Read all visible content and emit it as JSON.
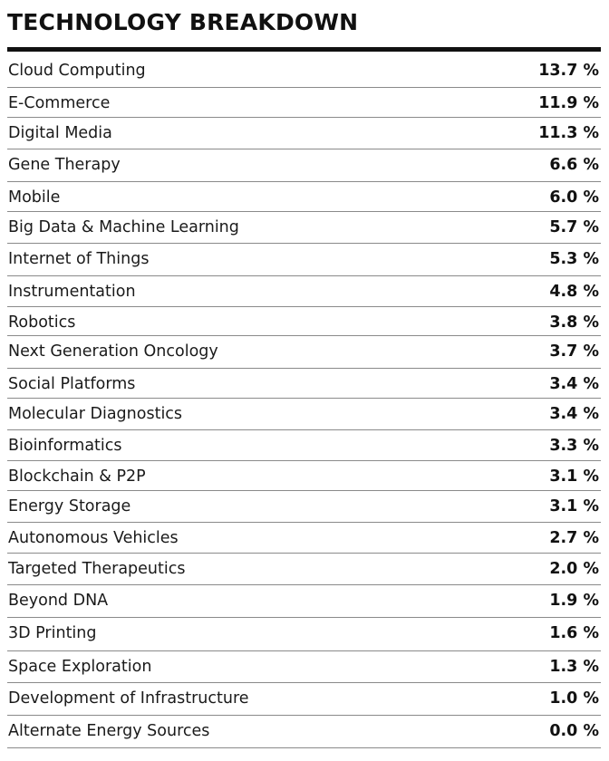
{
  "chart_data": {
    "type": "table",
    "title": "TECHNOLOGY BREAKDOWN",
    "unit_suffix": " %",
    "rows": [
      {
        "label": "Cloud Computing",
        "value": "13.7"
      },
      {
        "label": "E-Commerce",
        "value": "11.9"
      },
      {
        "label": "Digital Media",
        "value": "11.3"
      },
      {
        "label": "Gene Therapy",
        "value": "6.6"
      },
      {
        "label": "Mobile",
        "value": "6.0"
      },
      {
        "label": "Big Data & Machine Learning",
        "value": "5.7"
      },
      {
        "label": "Internet of Things",
        "value": "5.3"
      },
      {
        "label": "Instrumentation",
        "value": "4.8"
      },
      {
        "label": "Robotics",
        "value": "3.8"
      },
      {
        "label": "Next Generation Oncology",
        "value": "3.7"
      },
      {
        "label": "Social Platforms",
        "value": "3.4"
      },
      {
        "label": "Molecular Diagnostics",
        "value": "3.4"
      },
      {
        "label": "Bioinformatics",
        "value": "3.3"
      },
      {
        "label": "Blockchain & P2P",
        "value": "3.1"
      },
      {
        "label": "Energy Storage",
        "value": "3.1"
      },
      {
        "label": "Autonomous Vehicles",
        "value": "2.7"
      },
      {
        "label": "Targeted Therapeutics",
        "value": "2.0"
      },
      {
        "label": "Beyond DNA",
        "value": "1.9"
      },
      {
        "label": "3D Printing",
        "value": "1.6"
      },
      {
        "label": "Space Exploration",
        "value": "1.3"
      },
      {
        "label": "Development of Infrastructure",
        "value": "1.0"
      },
      {
        "label": "Alternate Energy Sources",
        "value": "0.0"
      }
    ]
  }
}
